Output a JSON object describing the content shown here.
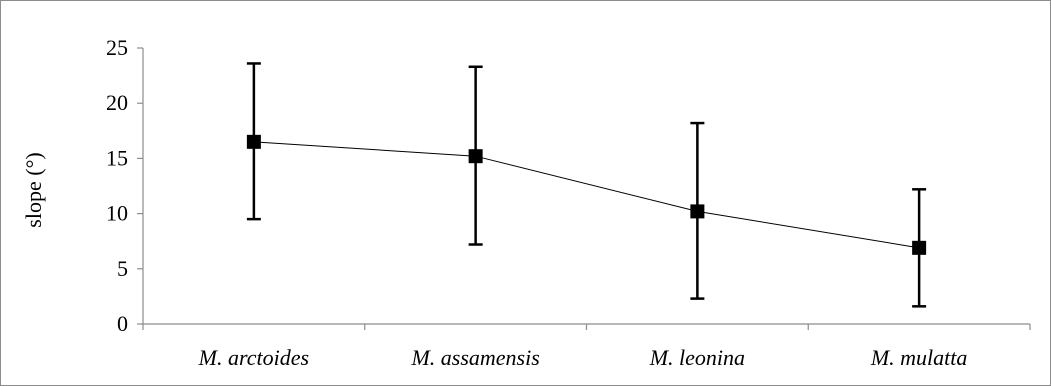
{
  "chart_data": {
    "type": "line",
    "title": "",
    "xlabel": "",
    "ylabel": "slope (°)",
    "ylim": [
      0,
      25
    ],
    "yticks": [
      0,
      5,
      10,
      15,
      20,
      25
    ],
    "grid": false,
    "legend": "none",
    "categories": [
      "M. arctoides",
      "M. assamensis",
      "M. leonina",
      "M. mulatta"
    ],
    "series": [
      {
        "values": [
          16.5,
          15.2,
          10.2,
          6.9
        ],
        "error_low": [
          9.5,
          7.2,
          2.3,
          1.6
        ],
        "error_high": [
          23.6,
          23.3,
          18.2,
          12.2
        ],
        "marker": "square",
        "color": "#000000"
      }
    ]
  }
}
